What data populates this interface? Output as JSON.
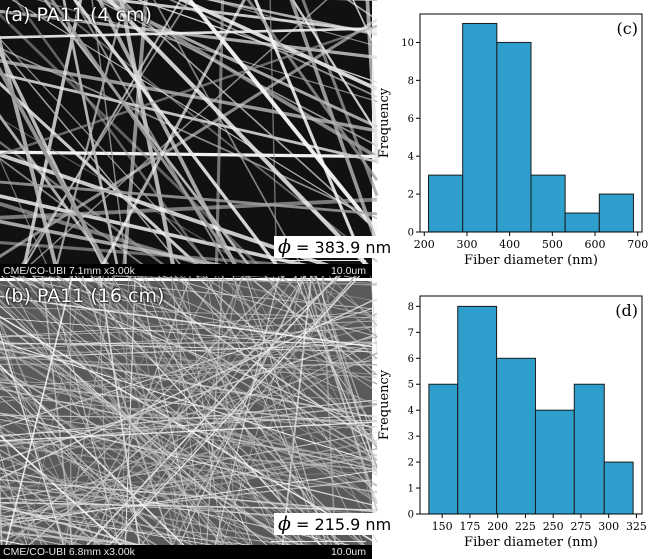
{
  "panels": {
    "a": {
      "label": "(a) PA11 (4 cm)",
      "diameter_symbol": "ϕ",
      "diameter_text": "= 383.9 nm",
      "info_left": "CME/CO-UBI 7.1mm x3.00k",
      "info_right": "10.0um"
    },
    "b": {
      "label": "(b) PA11 (16 cm)",
      "diameter_symbol": "ϕ",
      "diameter_text": "= 215.9 nm",
      "info_left": "CME/CO-UBI 6.8mm x3.00k",
      "info_right": "10.0um"
    }
  },
  "colors": {
    "bar_fill": "#2e9fcc",
    "bar_edge": "#1a1a1a",
    "sem_background": "#000000",
    "fiber": "#d9d9d9"
  },
  "chart_data": [
    {
      "id": "c",
      "type": "bar",
      "panel_label": "(c)",
      "xlabel": "Fiber diameter (nm)",
      "ylabel": "Frequency",
      "bins": [
        [
          210,
          290
        ],
        [
          290,
          370
        ],
        [
          370,
          450
        ],
        [
          450,
          530
        ],
        [
          530,
          610
        ],
        [
          610,
          690
        ]
      ],
      "values": [
        3,
        11,
        10,
        3,
        1,
        2
      ],
      "xlim": [
        190,
        710
      ],
      "ylim": [
        0,
        11.5
      ],
      "xticks": [
        200,
        300,
        400,
        500,
        600,
        700
      ],
      "yticks": [
        0,
        2,
        4,
        6,
        8,
        10
      ],
      "grid": false
    },
    {
      "id": "d",
      "type": "bar",
      "panel_label": "(d)",
      "xlabel": "Fiber diameter (nm)",
      "ylabel": "Frequency",
      "bins": [
        [
          138,
          164
        ],
        [
          164,
          199
        ],
        [
          199,
          234
        ],
        [
          234,
          269
        ],
        [
          269,
          296
        ],
        [
          296,
          322
        ]
      ],
      "values": [
        5,
        8,
        6,
        4,
        5,
        2
      ],
      "xlim": [
        130,
        330
      ],
      "ylim": [
        0,
        8.4
      ],
      "xticks": [
        150,
        175,
        200,
        225,
        250,
        275,
        300,
        325
      ],
      "yticks": [
        0,
        1,
        2,
        3,
        4,
        5,
        6,
        7,
        8
      ],
      "grid": false
    }
  ]
}
